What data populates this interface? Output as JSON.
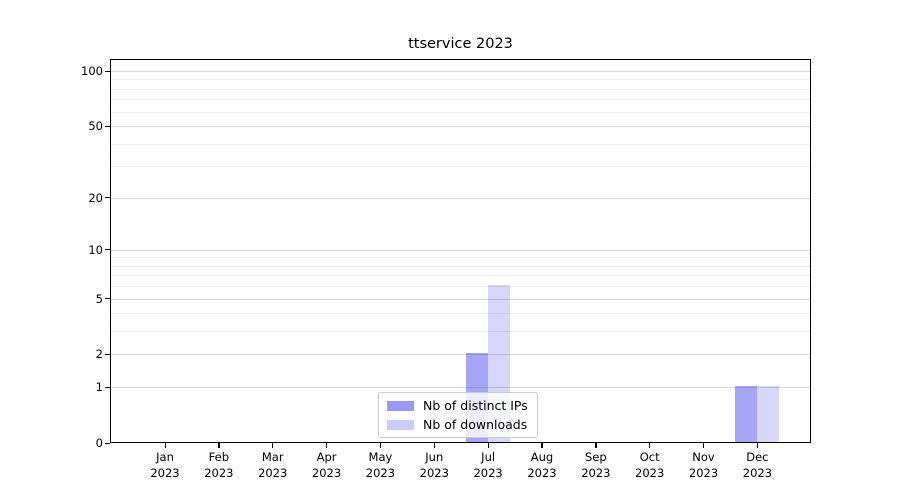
{
  "title": "ttservice 2023",
  "colors": {
    "bar_base": "#0000ee",
    "distinct_ips_alpha": 0.35,
    "downloads_alpha": 0.155,
    "distinct_ips_hex": "#a9a9f6",
    "downloads_hex": "#dadaf8",
    "grid_major": "#d9d9d9",
    "grid_minor": "#ededed",
    "axis": "#000000",
    "text": "#000000",
    "legend_border": "#cccccc",
    "legend_bg": "rgba(255,255,255,0.8)"
  },
  "legend": {
    "items": [
      {
        "label": "Nb of distinct IPs",
        "key": "distinct_ips"
      },
      {
        "label": "Nb of downloads",
        "key": "downloads"
      }
    ]
  },
  "chart_data": {
    "type": "bar",
    "title": "ttservice 2023",
    "categories": [
      "Jan",
      "Feb",
      "Mar",
      "Apr",
      "May",
      "Jun",
      "Jul",
      "Aug",
      "Sep",
      "Oct",
      "Nov",
      "Dec"
    ],
    "category_year": "2023",
    "series": [
      {
        "name": "Nb of distinct IPs",
        "key": "distinct_ips",
        "values": [
          0,
          0,
          0,
          0,
          0,
          0,
          2,
          0,
          0,
          0,
          0,
          1
        ]
      },
      {
        "name": "Nb of downloads",
        "key": "downloads",
        "values": [
          0,
          0,
          0,
          0,
          0,
          0,
          6,
          0,
          0,
          0,
          0,
          1
        ]
      }
    ],
    "y_scale": "log1p",
    "y_major_ticks": [
      0,
      1,
      2,
      5,
      10,
      20,
      50,
      100
    ],
    "y_minor_ticks": [
      3,
      4,
      6,
      7,
      8,
      9,
      30,
      40,
      60,
      70,
      80,
      90
    ],
    "ylim": [
      0,
      116
    ],
    "grid": true,
    "legend_position": "lower center"
  }
}
